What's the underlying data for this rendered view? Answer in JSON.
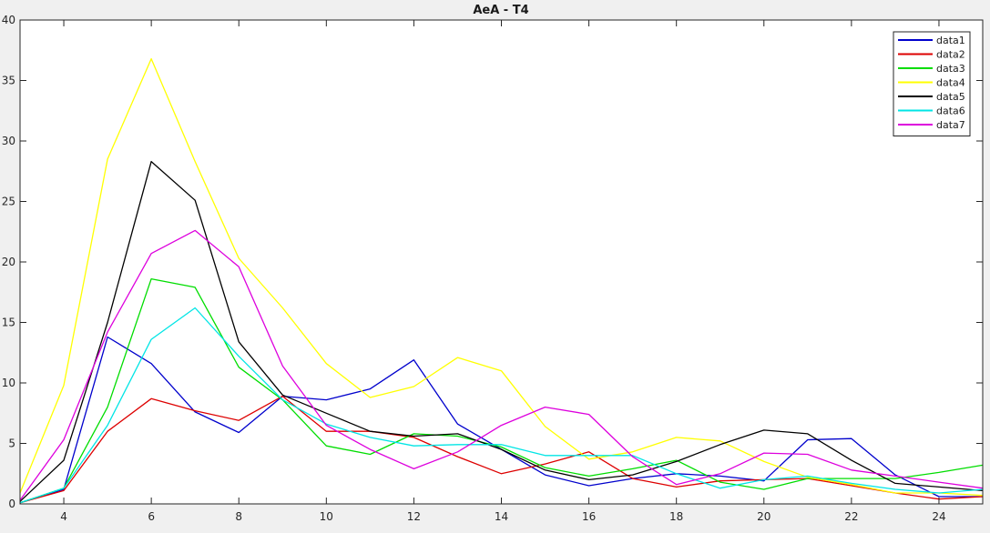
{
  "chart_data": {
    "type": "line",
    "title": "AeA - T4",
    "xlabel": "",
    "ylabel": "",
    "xlim": [
      3,
      25
    ],
    "ylim": [
      0,
      40
    ],
    "xticks": [
      4,
      6,
      8,
      10,
      12,
      14,
      16,
      18,
      20,
      22,
      24
    ],
    "yticks": [
      0,
      5,
      10,
      15,
      20,
      25,
      30,
      35,
      40
    ],
    "grid": false,
    "legend_position": "top-right",
    "x": [
      3,
      4,
      5,
      6,
      7,
      8,
      9,
      10,
      11,
      12,
      13,
      14,
      15,
      16,
      17,
      18,
      19,
      20,
      21,
      22,
      23,
      24,
      25
    ],
    "series": [
      {
        "name": "data1",
        "color": "#0000cc",
        "values": [
          0.1,
          1.2,
          13.8,
          11.6,
          7.6,
          5.9,
          8.9,
          8.6,
          9.5,
          11.9,
          6.6,
          4.5,
          2.4,
          1.5,
          2.1,
          2.5,
          2.3,
          1.9,
          5.3,
          5.4,
          2.4,
          0.6,
          0.6
        ]
      },
      {
        "name": "data2",
        "color": "#dd0000",
        "values": [
          0.1,
          1.1,
          6.0,
          8.7,
          7.7,
          6.9,
          8.9,
          6.0,
          6.0,
          5.5,
          3.9,
          2.5,
          3.3,
          4.3,
          2.1,
          1.4,
          1.9,
          2.0,
          2.1,
          1.5,
          0.9,
          0.4,
          0.6
        ]
      },
      {
        "name": "data3",
        "color": "#00dd00",
        "values": [
          0.1,
          1.3,
          8.0,
          18.6,
          17.9,
          11.3,
          8.6,
          4.8,
          4.1,
          5.8,
          5.6,
          4.7,
          3.0,
          2.3,
          2.9,
          3.6,
          1.8,
          1.2,
          2.1,
          2.1,
          2.1,
          2.6,
          3.2
        ]
      },
      {
        "name": "data4",
        "color": "#ffff00",
        "values": [
          0.9,
          9.8,
          28.5,
          36.8,
          28.3,
          20.3,
          16.2,
          11.6,
          8.8,
          9.7,
          12.1,
          11.0,
          6.4,
          3.7,
          4.3,
          5.5,
          5.2,
          3.5,
          2.2,
          1.6,
          0.9,
          0.9,
          0.7
        ]
      },
      {
        "name": "data5",
        "color": "#000000",
        "values": [
          0.2,
          3.6,
          15.0,
          28.3,
          25.1,
          13.4,
          9.0,
          7.5,
          6.0,
          5.6,
          5.8,
          4.5,
          2.8,
          2.0,
          2.4,
          3.5,
          4.9,
          6.1,
          5.8,
          3.6,
          1.7,
          1.4,
          1.1
        ]
      },
      {
        "name": "data6",
        "color": "#00e5e5",
        "values": [
          0.1,
          1.3,
          6.5,
          13.6,
          16.2,
          12.2,
          8.6,
          6.6,
          5.5,
          4.8,
          4.9,
          4.9,
          4.0,
          4.0,
          4.0,
          2.5,
          1.3,
          2.0,
          2.3,
          1.7,
          1.2,
          0.9,
          1.2
        ]
      },
      {
        "name": "data7",
        "color": "#dd00dd",
        "values": [
          0.3,
          5.3,
          14.2,
          20.7,
          22.6,
          19.6,
          11.4,
          6.5,
          4.5,
          2.9,
          4.3,
          6.5,
          8.0,
          7.4,
          3.9,
          1.6,
          2.5,
          4.2,
          4.1,
          2.8,
          2.3,
          1.8,
          1.3
        ]
      }
    ]
  }
}
